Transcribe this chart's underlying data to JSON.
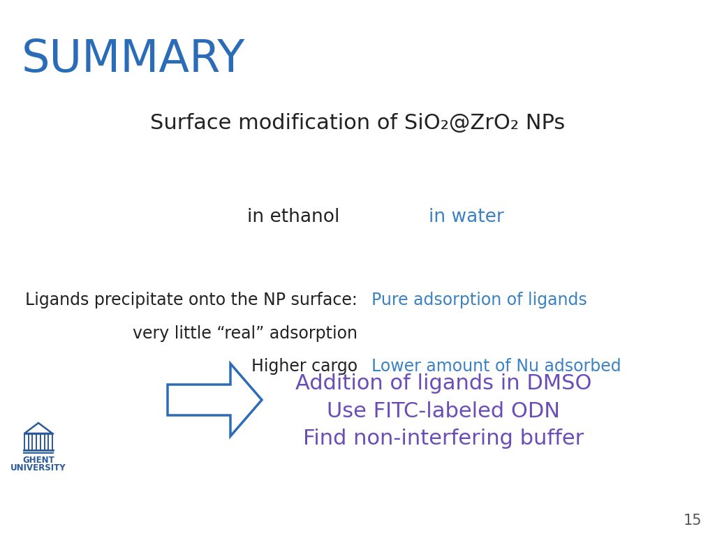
{
  "title": "SUMMARY",
  "title_color": "#2B6CB8",
  "title_fontsize": 46,
  "subtitle_text": "Surface modification of SiO₂@ZrO₂ NPs",
  "subtitle_color": "#222222",
  "subtitle_fontsize": 22,
  "col1_header": "in ethanol",
  "col2_header": "in water",
  "col_header_fontsize": 19,
  "col1_header_color": "#222222",
  "col2_header_color": "#3B82C4",
  "col1_lines": [
    "Ligands precipitate onto the NP surface:",
    "very little “real” adsorption",
    "Higher cargo"
  ],
  "col2_lines": [
    "Pure adsorption of ligands",
    "",
    "Lower amount of Nu adsorbed"
  ],
  "col1_lines_color": "#222222",
  "col2_line_color": "#3B82C4",
  "col_lines_fontsize": 17,
  "arrow_color": "#2B6CB8",
  "conclusion_lines": [
    "Addition of ligands in DMSO",
    "Use FITC-labeled ODN",
    "Find non-interfering buffer"
  ],
  "conclusion_color": "#6B4DB8",
  "conclusion_fontsize": 22,
  "page_number": "15",
  "page_number_color": "#555555",
  "page_number_fontsize": 15,
  "bg_color": "#ffffff",
  "ghent_color": "#2B5A9B"
}
